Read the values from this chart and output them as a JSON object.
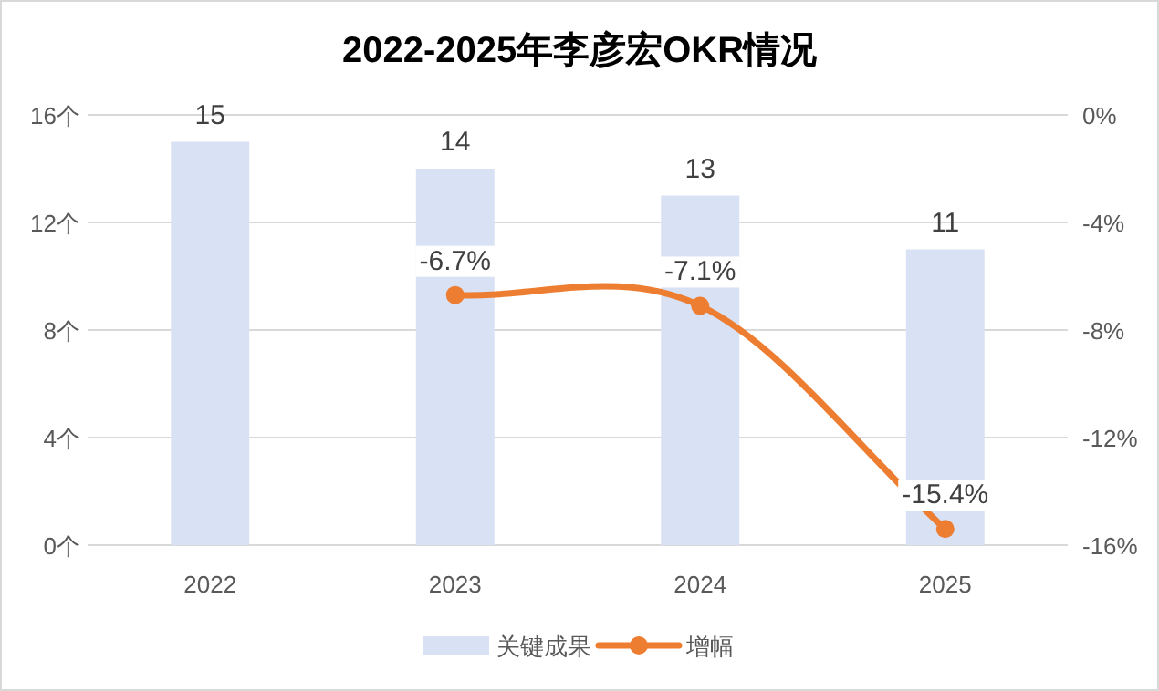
{
  "chart_data": {
    "type": "bar",
    "title": "2022-2025年李彦宏OKR情况",
    "categories": [
      "2022",
      "2023",
      "2024",
      "2025"
    ],
    "series": [
      {
        "name": "关键成果",
        "color": "#d9e1f5",
        "values": [
          15,
          14,
          13,
          11
        ],
        "value_labels": [
          "15",
          "14",
          "13",
          "11"
        ]
      },
      {
        "name": "增幅",
        "type": "line",
        "axis": "y2",
        "color": "#ed7d31",
        "marker": "circle",
        "values": [
          null,
          -6.7,
          -7.1,
          -15.4
        ],
        "value_labels": [
          null,
          "-6.7%",
          "-7.1%",
          "-15.4%"
        ]
      }
    ],
    "ylim": [
      0,
      16
    ],
    "yticks": [
      {
        "value": 0,
        "label": "0个"
      },
      {
        "value": 4,
        "label": "4个"
      },
      {
        "value": 8,
        "label": "8个"
      },
      {
        "value": 12,
        "label": "12个"
      },
      {
        "value": 16,
        "label": "16个"
      }
    ],
    "y2lim": [
      -16,
      0
    ],
    "y2ticks": [
      {
        "value": -16,
        "label": "-16%"
      },
      {
        "value": -12,
        "label": "-12%"
      },
      {
        "value": -8,
        "label": "-8%"
      },
      {
        "value": -4,
        "label": "-4%"
      },
      {
        "value": 0,
        "label": "0%"
      }
    ],
    "grid": "y",
    "legend": "bottom"
  }
}
